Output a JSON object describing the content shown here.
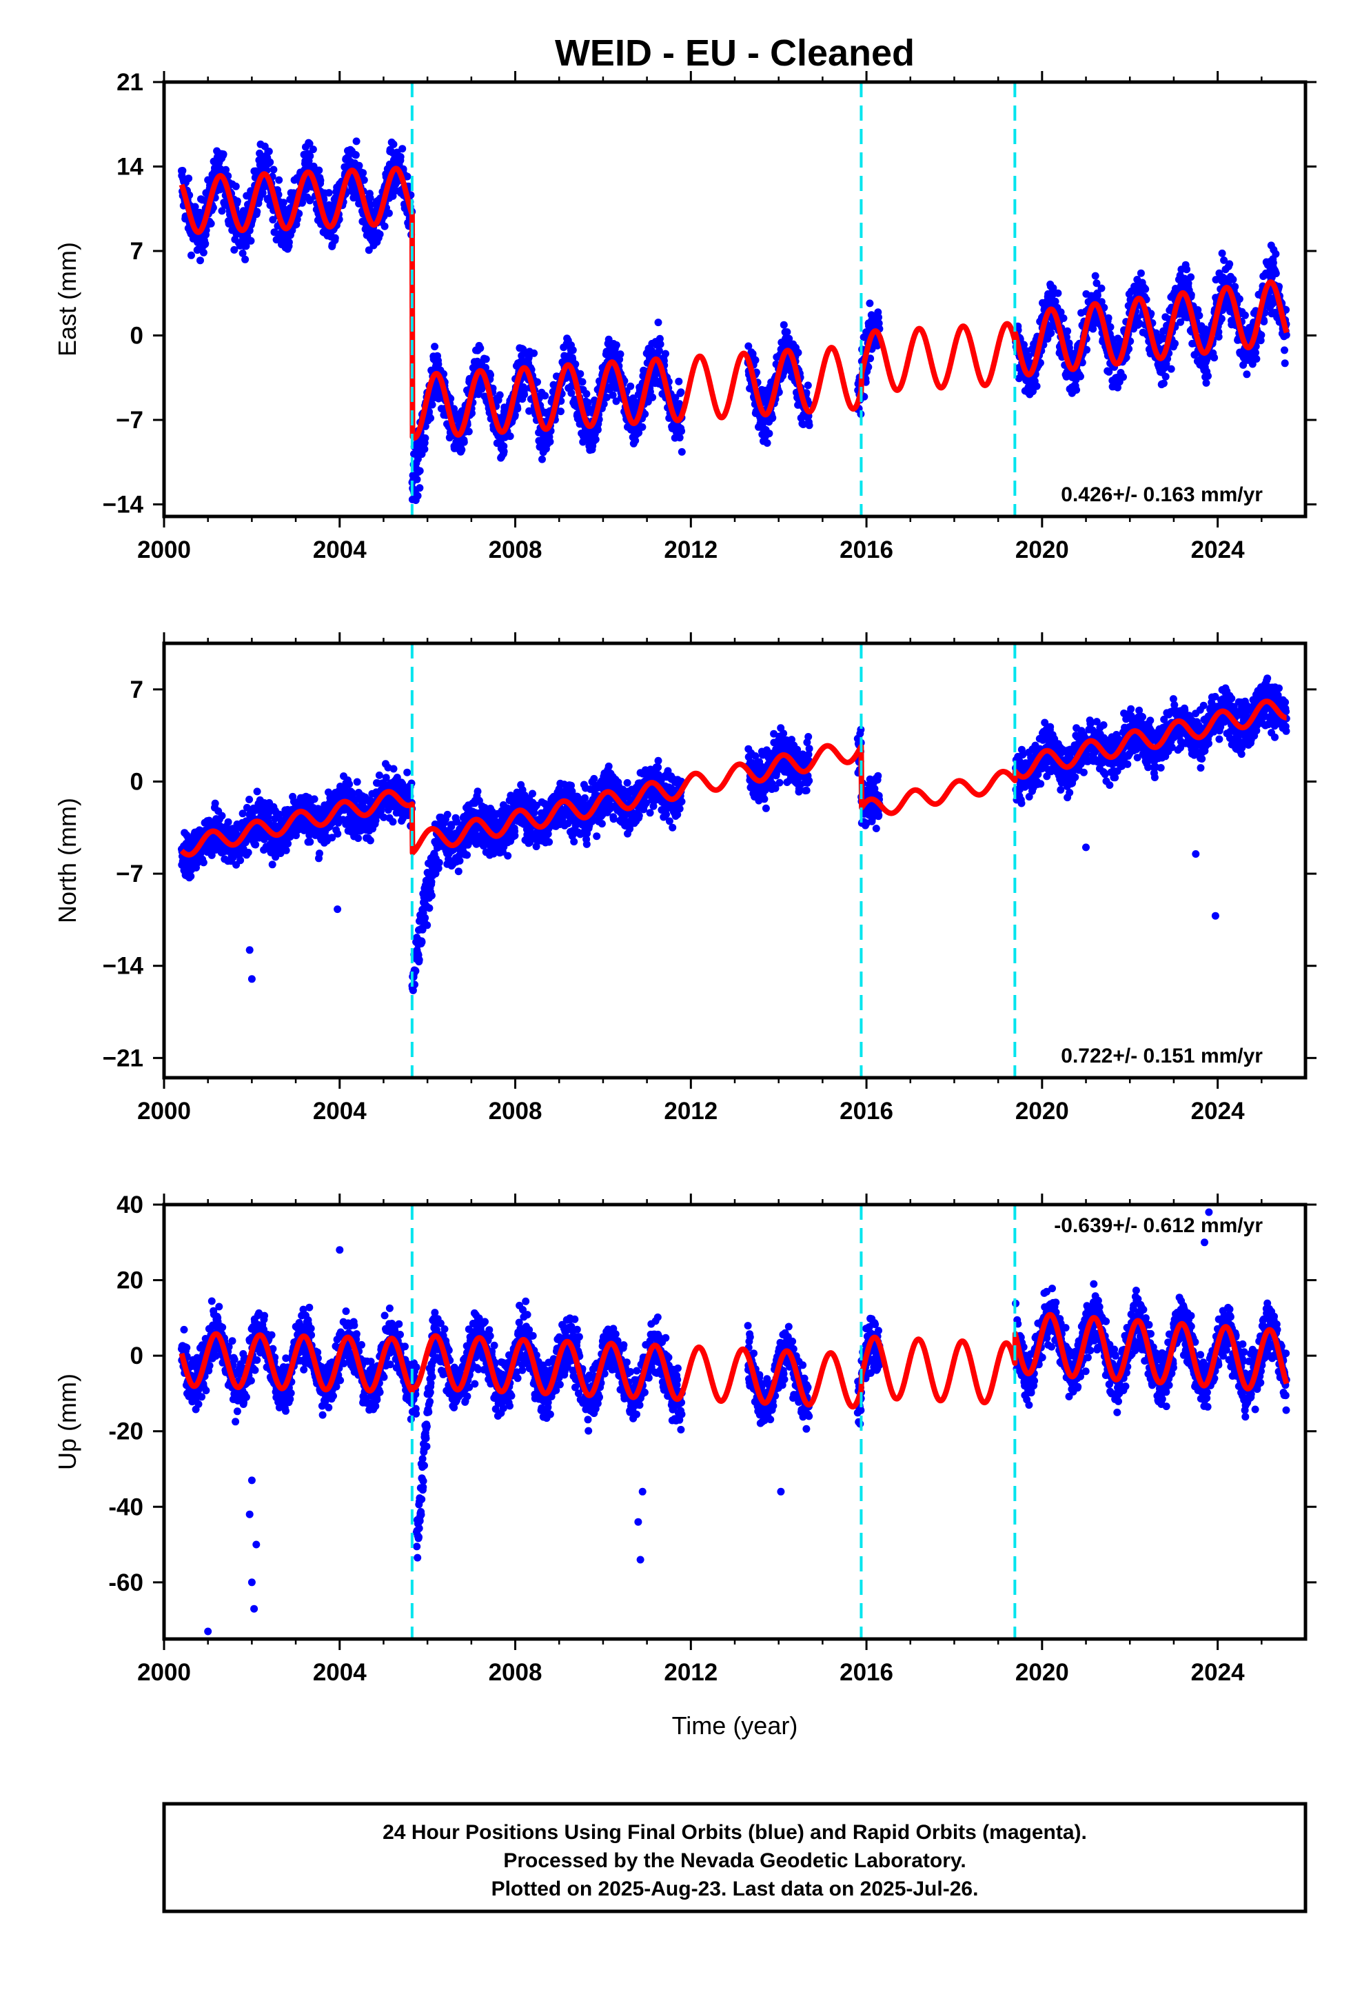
{
  "title": "WEID  - EU - Cleaned",
  "chart_data": [
    {
      "type": "scatter",
      "ylabel": "East (mm)",
      "xlim": [
        2000,
        2026
      ],
      "ylim": [
        -15,
        21
      ],
      "x_ticks": [
        2000,
        2004,
        2008,
        2012,
        2016,
        2020,
        2024
      ],
      "x_tick_labels": [
        "2000",
        "2004",
        "2008",
        "2012",
        "2016",
        "2020",
        "2024"
      ],
      "y_ticks": [
        21,
        14,
        7,
        0,
        -7,
        -14
      ],
      "y_tick_labels": [
        "21",
        "14",
        "7",
        "0",
        "−7",
        "−14"
      ],
      "rate_text": "0.426+/- 0.163 mm/yr",
      "rate_position": "bottom-right",
      "equipment_changes": [
        2005.65,
        2015.88,
        2019.38
      ],
      "data_coverage": [
        [
          2000.4,
          2011.8
        ],
        [
          2013.3,
          2014.7
        ],
        [
          2015.8,
          2016.3
        ],
        [
          2019.4,
          2025.57
        ]
      ],
      "model_segments": [
        {
          "start": 2000.4,
          "end": 2005.65,
          "offset": 10.8,
          "rate": 0.15,
          "amp": 2.3,
          "phase": -0.2
        },
        {
          "start": 2005.65,
          "end": 2015.88,
          "offset": -5.9,
          "rate": 0.24,
          "amp": 2.6,
          "phase": 0.3
        },
        {
          "start": 2015.88,
          "end": 2019.38,
          "offset": -2.2,
          "rate": 0.2,
          "amp": 2.5,
          "phase": 0.3
        },
        {
          "start": 2019.38,
          "end": 2025.57,
          "offset": -0.8,
          "rate": 0.45,
          "amp": 2.6,
          "phase": 0.3
        }
      ],
      "scatter_noise_mm": 1.6,
      "transients": [
        {
          "start": 2005.65,
          "end": 2006.2,
          "delta": -3.0
        }
      ]
    },
    {
      "type": "scatter",
      "ylabel": "North (mm)",
      "xlim": [
        2000,
        2026
      ],
      "ylim": [
        -22.5,
        10.5
      ],
      "x_ticks": [
        2000,
        2004,
        2008,
        2012,
        2016,
        2020,
        2024
      ],
      "x_tick_labels": [
        "2000",
        "2004",
        "2008",
        "2012",
        "2016",
        "2020",
        "2024"
      ],
      "y_ticks": [
        7,
        0,
        -7,
        -14,
        -21
      ],
      "y_tick_labels": [
        "7",
        "0",
        "−7",
        "−14",
        "−21"
      ],
      "rate_text": "0.722+/- 0.151 mm/yr",
      "rate_position": "bottom-right",
      "equipment_changes": [
        2005.65,
        2015.88,
        2019.38
      ],
      "data_coverage": [
        [
          2000.4,
          2011.8
        ],
        [
          2013.3,
          2014.7
        ],
        [
          2015.8,
          2016.3
        ],
        [
          2019.4,
          2025.57
        ]
      ],
      "model_segments": [
        {
          "start": 2000.4,
          "end": 2005.65,
          "offset": -5.0,
          "rate": 0.75,
          "amp": 0.7,
          "phase": 1.0
        },
        {
          "start": 2005.65,
          "end": 2015.88,
          "offset": -4.7,
          "rate": 0.7,
          "amp": 0.8,
          "phase": 1.0
        },
        {
          "start": 2015.88,
          "end": 2019.38,
          "offset": -2.2,
          "rate": 0.7,
          "amp": 0.7,
          "phase": 1.0
        },
        {
          "start": 2019.38,
          "end": 2025.57,
          "offset": 1.0,
          "rate": 0.75,
          "amp": 0.8,
          "phase": 1.0
        }
      ],
      "scatter_noise_mm": 1.3,
      "transients": [
        {
          "start": 2005.65,
          "end": 2006.3,
          "delta": -10.0
        }
      ],
      "outliers": [
        [
          2002.0,
          -15.0
        ],
        [
          2001.95,
          -12.8
        ],
        [
          2003.95,
          -9.7
        ],
        [
          2023.95,
          -10.2
        ],
        [
          2023.5,
          -5.5
        ],
        [
          2021.0,
          -5.0
        ]
      ]
    },
    {
      "type": "scatter",
      "ylabel": "Up (mm)",
      "xlabel": "Time (year)",
      "xlim": [
        2000,
        2026
      ],
      "ylim": [
        -75,
        40
      ],
      "x_ticks": [
        2000,
        2004,
        2008,
        2012,
        2016,
        2020,
        2024
      ],
      "x_tick_labels": [
        "2000",
        "2004",
        "2008",
        "2012",
        "2016",
        "2020",
        "2024"
      ],
      "y_ticks": [
        40,
        20,
        0,
        -20,
        -40,
        -60
      ],
      "y_tick_labels": [
        "40",
        "20",
        "0",
        "-20",
        "-40",
        "-60"
      ],
      "rate_text": "-0.639+/- 0.612 mm/yr",
      "rate_position": "top-right",
      "equipment_changes": [
        2005.65,
        2015.88,
        2019.38
      ],
      "data_coverage": [
        [
          2000.4,
          2011.8
        ],
        [
          2013.3,
          2014.7
        ],
        [
          2015.8,
          2016.3
        ],
        [
          2019.4,
          2025.57
        ]
      ],
      "model_segments": [
        {
          "start": 2000.4,
          "end": 2005.65,
          "offset": -1.0,
          "rate": -0.3,
          "amp": 7.0,
          "phase": 0.4
        },
        {
          "start": 2005.65,
          "end": 2015.88,
          "offset": -1.5,
          "rate": -0.5,
          "amp": 7.0,
          "phase": 0.4
        },
        {
          "start": 2015.88,
          "end": 2019.38,
          "offset": -3.0,
          "rate": -0.5,
          "amp": 8.0,
          "phase": 0.4
        },
        {
          "start": 2019.38,
          "end": 2025.57,
          "offset": 3.5,
          "rate": -0.8,
          "amp": 8.0,
          "phase": 0.4
        }
      ],
      "scatter_noise_mm": 5.0,
      "transients": [
        {
          "start": 2005.75,
          "end": 2006.15,
          "delta": -42.0
        }
      ],
      "outliers": [
        [
          2001.0,
          -73.0
        ],
        [
          2002.05,
          -67.0
        ],
        [
          2002.0,
          -60.0
        ],
        [
          2002.1,
          -50.0
        ],
        [
          2001.95,
          -42.0
        ],
        [
          2002.0,
          -33.0
        ],
        [
          2004.0,
          28.0
        ],
        [
          2010.85,
          -54.0
        ],
        [
          2010.8,
          -44.0
        ],
        [
          2010.9,
          -36.0
        ],
        [
          2014.05,
          -36.0
        ],
        [
          2023.8,
          38.0
        ],
        [
          2023.7,
          30.0
        ]
      ]
    }
  ],
  "footer": {
    "line1": "24 Hour Positions Using Final Orbits (blue) and Rapid Orbits (magenta).",
    "line2": "Processed by the Nevada Geodetic Laboratory.",
    "line3": "Plotted on 2025-Aug-23. Last data on 2025-Jul-26."
  },
  "colors": {
    "points": "#0000ff",
    "model": "#ff0000",
    "break": "#00e5ee",
    "frame": "#000000"
  }
}
